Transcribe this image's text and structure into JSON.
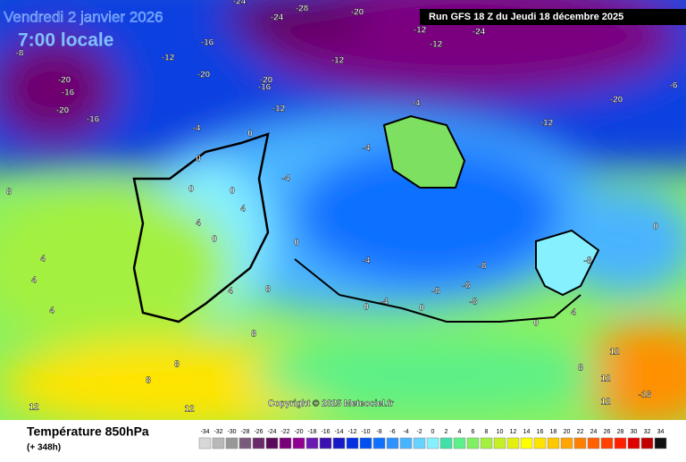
{
  "header": {
    "date": "Vendredi 2 janvier 2026",
    "time": "7:00 locale",
    "run": "Run GFS 18 Z du Jeudi 18 décembre 2025"
  },
  "copyright": "Copyright © 2025 Meteociel.fr",
  "footer": {
    "title": "Température 850hPa",
    "lead": "(+ 348h)"
  },
  "scale": {
    "values": [
      -34,
      -32,
      -30,
      -28,
      -26,
      -24,
      -22,
      -20,
      -18,
      -16,
      -14,
      -12,
      -10,
      -8,
      -6,
      -4,
      -2,
      0,
      2,
      4,
      6,
      8,
      10,
      12,
      14,
      16,
      18,
      20,
      22,
      24,
      26,
      28,
      30,
      32,
      34
    ],
    "colors": [
      "#d8d8d8",
      "#b8b8b8",
      "#989898",
      "#7a5a7a",
      "#6a2a6a",
      "#5a0a5a",
      "#7a007a",
      "#900090",
      "#6a1ab0",
      "#3a10b0",
      "#1818c8",
      "#0030e0",
      "#0050f0",
      "#1070ff",
      "#2c92ff",
      "#48b4ff",
      "#66d2ff",
      "#86f0ff",
      "#40e0a8",
      "#5cf088",
      "#80f060",
      "#a4f040",
      "#c4f024",
      "#e4f010",
      "#ffff00",
      "#ffe400",
      "#ffc800",
      "#ffa400",
      "#ff8000",
      "#ff6000",
      "#ff4000",
      "#ff2000",
      "#e00000",
      "#c00000",
      "#101010"
    ]
  },
  "contour_labels": [
    -24,
    -28,
    -24,
    -20,
    -12,
    -12,
    -24,
    -20,
    -8,
    -20,
    -16,
    -20,
    -16,
    -16,
    -12,
    -20,
    -16,
    -12,
    -4,
    -4,
    -4,
    -12,
    -20,
    -12,
    -6,
    0,
    0,
    0,
    0,
    0,
    4,
    4,
    0,
    -4,
    -8,
    -8,
    -8,
    -4,
    -8,
    -4,
    0,
    -8,
    0,
    4,
    4,
    4,
    4,
    8,
    8,
    8,
    8,
    12,
    12,
    12,
    12,
    8,
    12,
    -16,
    0,
    0,
    4,
    8
  ]
}
